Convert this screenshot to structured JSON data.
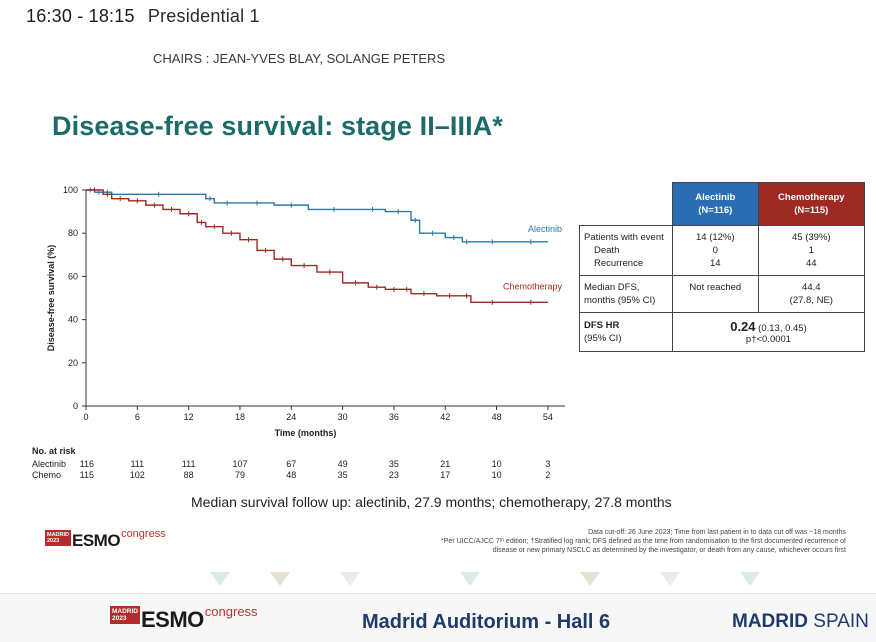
{
  "header": {
    "time": "16:30 - 18:15",
    "session": "Presidential 1",
    "chairs": "CHAIRS : JEAN-YVES BLAY, SOLANGE PETERS"
  },
  "slide": {
    "title": "Disease-free survival: stage II–IIIA*",
    "median_followup": "Median survival follow up: alectinib, 27.9 months; chemotherapy, 27.8 months",
    "footnote_1": "Data cut-off: 26 June 2023; Time from last patient in to data cut off was ~18 months",
    "footnote_2": "*Per UICC/AJCC 7ᵗʰ edition; †Stratified log rank; DFS defined as the time from randomisation to the first documented recurrence of",
    "footnote_3": "disease or new primary NSCLC as determined by the investigator, or death from any cause, whichever occurs first"
  },
  "chart_data": {
    "type": "line",
    "xlabel": "Time (months)",
    "ylabel": "Disease-free survival (%)",
    "xlim": [
      0,
      56
    ],
    "ylim": [
      0,
      100
    ],
    "xticks": [
      0,
      6,
      12,
      18,
      24,
      30,
      36,
      42,
      48,
      54
    ],
    "yticks": [
      0,
      20,
      40,
      60,
      80,
      100
    ],
    "step": true,
    "grid": false,
    "series": [
      {
        "name": "Alectinib",
        "color": "#2a7aa6",
        "x": [
          0,
          1,
          2,
          3,
          14,
          15,
          18,
          22,
          26,
          32,
          35,
          38,
          39,
          42,
          44,
          45,
          50,
          54
        ],
        "values": [
          100,
          99,
          99,
          98,
          96,
          94,
          94,
          93,
          91,
          91,
          90,
          86,
          80,
          78,
          76,
          76,
          76,
          76
        ]
      },
      {
        "name": "Chemotherapy",
        "color": "#9e2a24",
        "x": [
          0,
          2,
          3,
          5,
          7,
          9,
          11,
          13,
          14,
          16,
          18,
          20,
          22,
          24,
          27,
          30,
          33,
          35,
          37,
          38,
          41,
          44,
          45,
          50,
          54
        ],
        "values": [
          100,
          98,
          96,
          95,
          93,
          91,
          89,
          85,
          83,
          80,
          77,
          72,
          68,
          65,
          62,
          57,
          55,
          54,
          54,
          52,
          51,
          51,
          48,
          48,
          48
        ]
      }
    ],
    "at_risk": {
      "title": "No. at risk",
      "times": [
        0,
        6,
        12,
        18,
        24,
        30,
        36,
        42,
        48,
        54
      ],
      "rows": [
        {
          "label": "Alectinib",
          "values": [
            "116",
            "111",
            "111",
            "107",
            "67",
            "49",
            "35",
            "21",
            "10",
            "3"
          ]
        },
        {
          "label": "Chemo",
          "values": [
            "115",
            "102",
            "88",
            "79",
            "48",
            "35",
            "23",
            "17",
            "10",
            "2"
          ]
        }
      ]
    }
  },
  "table": {
    "alectinib_header": [
      "Alectinib",
      "(N=116)"
    ],
    "chemo_header": [
      "Chemotherapy",
      "(N=115)"
    ],
    "events_labels": [
      "Patients with event",
      "Death",
      "Recurrence"
    ],
    "events_alectinib": [
      "14 (12%)",
      "0",
      "14"
    ],
    "events_chemo": [
      "45 (39%)",
      "1",
      "44"
    ],
    "median_label": [
      "Median DFS,",
      "months (95% CI)"
    ],
    "median_alectinib": "Not reached",
    "median_chemo": [
      "44.4",
      "(27.8, NE)"
    ],
    "hr_label": [
      "DFS HR",
      "(95% CI)"
    ],
    "hr_value": "0.24",
    "hr_ci": "(0.13, 0.45)",
    "p_value": "p†<0.0001"
  },
  "logo": {
    "madrid": "MADRID",
    "year": "2023",
    "brand": "ESMO",
    "suffix": "congress"
  },
  "footer": {
    "venue": "Madrid Auditorium - Hall 6",
    "city_bold": "MADRID",
    "city_rest": " SPAIN"
  }
}
